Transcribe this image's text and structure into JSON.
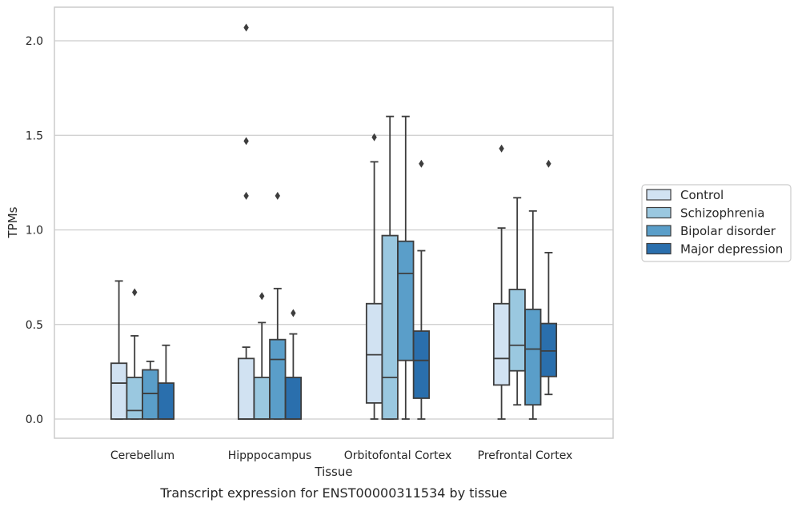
{
  "chart_data": {
    "type": "box",
    "title": "",
    "caption": "Transcript expression for ENST00000311534 by tissue",
    "xlabel": "Tissue",
    "ylabel": "TPMs",
    "ylim": [
      -0.1,
      2.18
    ],
    "yticks": [
      "0.0",
      "0.5",
      "1.0",
      "1.5",
      "2.0"
    ],
    "ytick_values": [
      0.0,
      0.5,
      1.0,
      1.5,
      2.0
    ],
    "grid": true,
    "legend_position": "right",
    "categories": [
      "Cerebellum",
      "Hipppocampus",
      "Orbitofontal Cortex",
      "Prefrontal Cortex"
    ],
    "series": [
      {
        "name": "Control",
        "color": "#d1e2f2",
        "boxes": [
          {
            "whislo": 0.0,
            "q1": 0.0,
            "med": 0.19,
            "q3": 0.295,
            "whishi": 0.73,
            "fliers": []
          },
          {
            "whislo": 0.0,
            "q1": 0.0,
            "med": 0.0,
            "q3": 0.32,
            "whishi": 0.38,
            "fliers": [
              1.18,
              1.47,
              2.07
            ]
          },
          {
            "whislo": 0.0,
            "q1": 0.085,
            "med": 0.34,
            "q3": 0.61,
            "whishi": 1.36,
            "fliers": [
              1.49
            ]
          },
          {
            "whislo": 0.0,
            "q1": 0.18,
            "med": 0.32,
            "q3": 0.61,
            "whishi": 1.01,
            "fliers": [
              1.43
            ]
          }
        ]
      },
      {
        "name": "Schizophrenia",
        "color": "#9ac8e0",
        "boxes": [
          {
            "whislo": 0.0,
            "q1": 0.0,
            "med": 0.045,
            "q3": 0.22,
            "whishi": 0.44,
            "fliers": [
              0.67
            ]
          },
          {
            "whislo": 0.0,
            "q1": 0.0,
            "med": 0.0,
            "q3": 0.22,
            "whishi": 0.51,
            "fliers": [
              0.65
            ]
          },
          {
            "whislo": 0.0,
            "q1": 0.0,
            "med": 0.22,
            "q3": 0.97,
            "whishi": 1.6,
            "fliers": []
          },
          {
            "whislo": 0.075,
            "q1": 0.255,
            "med": 0.39,
            "q3": 0.685,
            "whishi": 1.17,
            "fliers": []
          }
        ]
      },
      {
        "name": "Bipolar disorder",
        "color": "#5a9ec9",
        "boxes": [
          {
            "whislo": 0.0,
            "q1": 0.0,
            "med": 0.135,
            "q3": 0.26,
            "whishi": 0.305,
            "fliers": []
          },
          {
            "whislo": 0.0,
            "q1": 0.0,
            "med": 0.315,
            "q3": 0.42,
            "whishi": 0.69,
            "fliers": [
              1.18
            ]
          },
          {
            "whislo": 0.0,
            "q1": 0.31,
            "med": 0.77,
            "q3": 0.94,
            "whishi": 1.6,
            "fliers": []
          },
          {
            "whislo": 0.0,
            "q1": 0.075,
            "med": 0.37,
            "q3": 0.58,
            "whishi": 1.1,
            "fliers": []
          }
        ]
      },
      {
        "name": "Major depression",
        "color": "#2a6fad",
        "boxes": [
          {
            "whislo": 0.0,
            "q1": 0.0,
            "med": 0.0,
            "q3": 0.19,
            "whishi": 0.39,
            "fliers": []
          },
          {
            "whislo": 0.0,
            "q1": 0.0,
            "med": 0.0,
            "q3": 0.22,
            "whishi": 0.45,
            "fliers": [
              0.56
            ]
          },
          {
            "whislo": 0.0,
            "q1": 0.11,
            "med": 0.31,
            "q3": 0.465,
            "whishi": 0.89,
            "fliers": [
              1.35
            ]
          },
          {
            "whislo": 0.13,
            "q1": 0.225,
            "med": 0.36,
            "q3": 0.505,
            "whishi": 0.88,
            "fliers": [
              1.35
            ]
          }
        ]
      }
    ]
  }
}
